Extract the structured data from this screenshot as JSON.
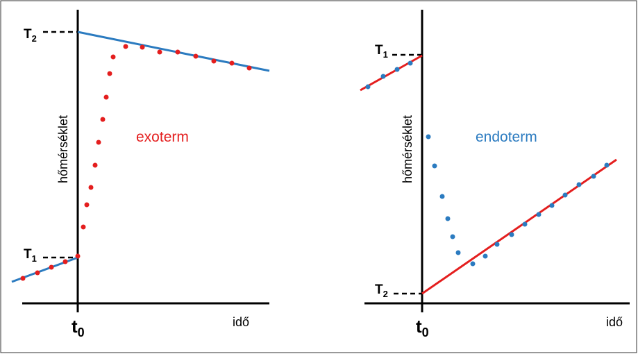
{
  "colors": {
    "blue": "#2b7bc0",
    "red": "#e41e1e",
    "axis": "#000000"
  },
  "left_panel": {
    "y_label": "hőmérséklet",
    "x_label": "idő",
    "t0_main": "t",
    "t0_sub": "0",
    "T_upper_main": "T",
    "T_upper_sub": "2",
    "T_lower_main": "T",
    "T_lower_sub": "1",
    "annotation": "exoterm"
  },
  "right_panel": {
    "y_label": "hőmérséklet",
    "x_label": "idő",
    "t0_main": "t",
    "t0_sub": "0",
    "T_upper_main": "T",
    "T_upper_sub": "1",
    "T_lower_main": "T",
    "T_lower_sub": "2",
    "annotation": "endoterm"
  }
}
